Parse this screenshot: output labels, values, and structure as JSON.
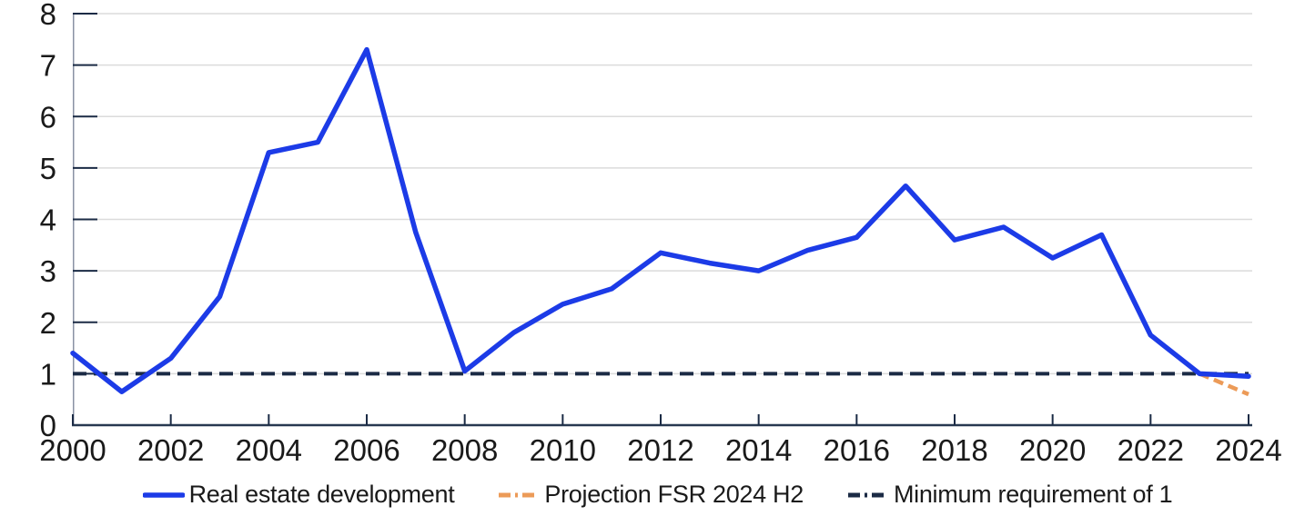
{
  "chart_data": {
    "type": "line",
    "title": "",
    "xlabel": "",
    "ylabel": "",
    "x": [
      2000,
      2001,
      2002,
      2003,
      2004,
      2005,
      2006,
      2007,
      2008,
      2009,
      2010,
      2011,
      2012,
      2013,
      2014,
      2015,
      2016,
      2017,
      2018,
      2019,
      2020,
      2021,
      2022,
      2023,
      2024
    ],
    "xlim": [
      2000,
      2024
    ],
    "ylim": [
      0,
      8
    ],
    "yticks": [
      0,
      1,
      2,
      3,
      4,
      5,
      6,
      7,
      8
    ],
    "xtick_labels": [
      2000,
      2002,
      2004,
      2006,
      2008,
      2010,
      2012,
      2014,
      2016,
      2018,
      2020,
      2022,
      2024
    ],
    "grid": "horizontal",
    "legend_position": "bottom",
    "series": [
      {
        "name": "Real estate development",
        "color": "#1C3BE7",
        "line_style": "solid",
        "values": [
          1.4,
          0.65,
          1.3,
          2.5,
          5.3,
          5.5,
          7.3,
          3.75,
          1.05,
          1.8,
          2.35,
          2.65,
          3.35,
          3.15,
          3.0,
          3.4,
          3.65,
          4.65,
          3.6,
          3.85,
          3.25,
          3.7,
          1.75,
          1.0,
          0.95
        ]
      },
      {
        "name": "Projection FSR 2024 H2",
        "color": "#EC9B58",
        "line_style": "dashed",
        "values": [
          null,
          null,
          null,
          null,
          null,
          null,
          null,
          null,
          null,
          null,
          null,
          null,
          null,
          null,
          null,
          null,
          null,
          null,
          null,
          null,
          null,
          null,
          null,
          1.0,
          0.6
        ]
      },
      {
        "name": "Minimum requirement of 1",
        "color": "#1B2B45",
        "line_style": "dashed",
        "values": [
          1,
          1,
          1,
          1,
          1,
          1,
          1,
          1,
          1,
          1,
          1,
          1,
          1,
          1,
          1,
          1,
          1,
          1,
          1,
          1,
          1,
          1,
          1,
          1,
          1
        ]
      }
    ]
  },
  "colors": {
    "background": "#FFFFFF",
    "gridline": "#DBDBDB",
    "y_axis_line": "#8A92A4",
    "x_axis_line": "#273850",
    "tick": "#1B2B45",
    "axis_text": "#1A1A1A"
  }
}
